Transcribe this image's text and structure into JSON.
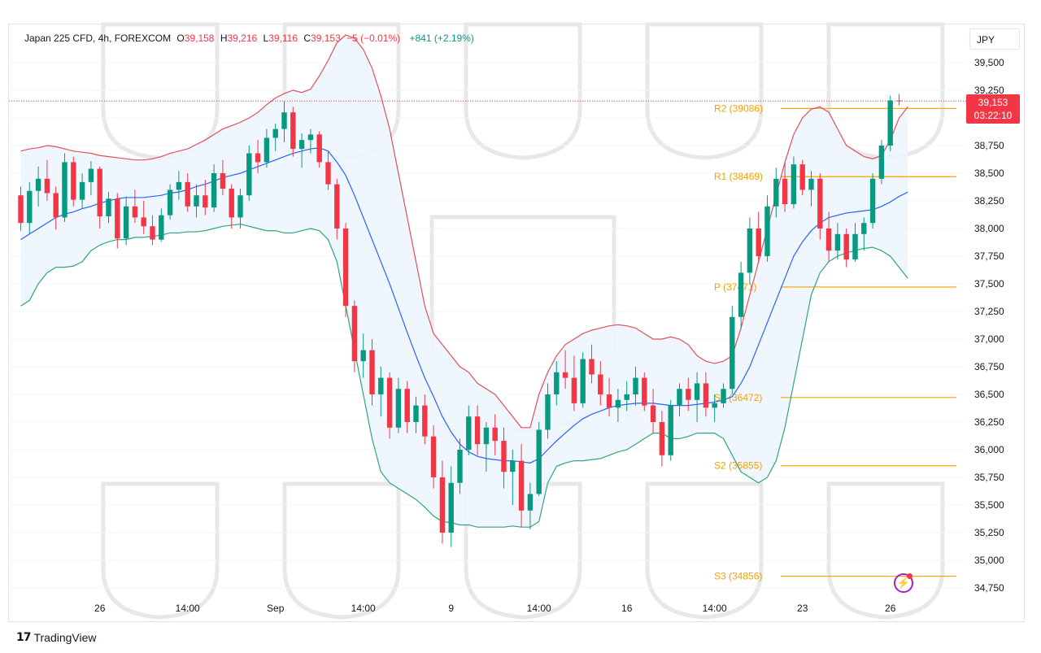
{
  "legend": {
    "symbol": "Japan 225 CFD, 4h, FOREXCOM",
    "o_label": "O",
    "o_value": "39,158",
    "h_label": "H",
    "h_value": "39,216",
    "l_label": "L",
    "l_value": "39,116",
    "c_label": "C",
    "c_value": "39,153",
    "change": "−5 (−0.01%)",
    "change2": "+841 (+2.19%)"
  },
  "currency_button": "JPY",
  "price_tag": {
    "price": "39,153",
    "countdown": "03:22:10"
  },
  "brand": {
    "logo": "17",
    "name": "TradingView"
  },
  "icons": {
    "alert": "lightning-bolt-icon"
  },
  "colors": {
    "up": "#089981",
    "down": "#f23645",
    "upper_band": "#e0505a",
    "lower_band": "#2fa67a",
    "basis": "#2962ff",
    "band_fill": "#eef5fd",
    "pivot": "#f5a100",
    "last_price": "#f23645"
  },
  "chart_data": {
    "type": "candlestick",
    "title": "Japan 225 CFD, 4h, FOREXCOM",
    "ylim": [
      34650,
      39700
    ],
    "y_ticks": [
      34750,
      35000,
      35250,
      35500,
      35750,
      36000,
      36250,
      36500,
      36750,
      37000,
      37250,
      37500,
      37750,
      38000,
      38250,
      38500,
      38750,
      39000,
      39250,
      39500
    ],
    "y_tick_labels": [
      "34,750",
      "35,000",
      "35,250",
      "35,500",
      "35,750",
      "36,000",
      "36,250",
      "36,500",
      "36,750",
      "37,000",
      "37,250",
      "37,500",
      "37,750",
      "38,000",
      "38,250",
      "38,500",
      "38,750",
      "39,000",
      "39,250",
      "39,500"
    ],
    "x_ticks": [
      {
        "bar": 9,
        "label": "26"
      },
      {
        "bar": 19,
        "label": "14:00"
      },
      {
        "bar": 29,
        "label": "Sep"
      },
      {
        "bar": 39,
        "label": "14:00"
      },
      {
        "bar": 49,
        "label": "9"
      },
      {
        "bar": 59,
        "label": "14:00"
      },
      {
        "bar": 69,
        "label": "16"
      },
      {
        "bar": 79,
        "label": "14:00"
      },
      {
        "bar": 89,
        "label": "23"
      },
      {
        "bar": 99,
        "label": "26"
      }
    ],
    "pivot_levels": [
      {
        "name": "R2",
        "value": 39086,
        "label": "R2 (39086)"
      },
      {
        "name": "R1",
        "value": 38469,
        "label": "R1 (38469)"
      },
      {
        "name": "P",
        "value": 37471,
        "label": "P (37471)"
      },
      {
        "name": "S1",
        "value": 36472,
        "label": "S1 (36472)"
      },
      {
        "name": "S2",
        "value": 35855,
        "label": "S2 (35855)"
      },
      {
        "name": "S3",
        "value": 34856,
        "label": "S3 (34856)"
      }
    ],
    "last_price": 39153,
    "candles": [
      [
        38300,
        38380,
        37980,
        38050
      ],
      [
        38050,
        38420,
        37950,
        38340
      ],
      [
        38340,
        38560,
        38200,
        38450
      ],
      [
        38450,
        38620,
        38250,
        38320
      ],
      [
        38320,
        38380,
        37990,
        38100
      ],
      [
        38100,
        38680,
        38060,
        38600
      ],
      [
        38600,
        38650,
        38200,
        38260
      ],
      [
        38260,
        38500,
        38180,
        38420
      ],
      [
        38420,
        38610,
        38300,
        38540
      ],
      [
        38540,
        38560,
        38000,
        38110
      ],
      [
        38110,
        38330,
        38050,
        38270
      ],
      [
        38270,
        38320,
        37820,
        37910
      ],
      [
        37910,
        38290,
        37850,
        38200
      ],
      [
        38200,
        38350,
        38050,
        38100
      ],
      [
        38100,
        38250,
        37950,
        38020
      ],
      [
        38020,
        38120,
        37850,
        37900
      ],
      [
        37900,
        38180,
        37880,
        38120
      ],
      [
        38120,
        38400,
        38080,
        38350
      ],
      [
        38350,
        38520,
        38260,
        38420
      ],
      [
        38420,
        38500,
        38150,
        38200
      ],
      [
        38200,
        38400,
        38100,
        38300
      ],
      [
        38300,
        38440,
        38120,
        38190
      ],
      [
        38190,
        38580,
        38150,
        38500
      ],
      [
        38500,
        38620,
        38300,
        38360
      ],
      [
        38360,
        38400,
        38000,
        38100
      ],
      [
        38100,
        38360,
        38000,
        38300
      ],
      [
        38300,
        38750,
        38250,
        38680
      ],
      [
        38680,
        38800,
        38500,
        38600
      ],
      [
        38600,
        38900,
        38550,
        38820
      ],
      [
        38820,
        38950,
        38700,
        38900
      ],
      [
        38900,
        39150,
        38780,
        39050
      ],
      [
        39050,
        39100,
        38650,
        38720
      ],
      [
        38720,
        38860,
        38550,
        38800
      ],
      [
        38800,
        38900,
        38680,
        38850
      ],
      [
        38850,
        38880,
        38550,
        38600
      ],
      [
        38600,
        38700,
        38350,
        38400
      ],
      [
        38400,
        38450,
        37900,
        38000
      ],
      [
        38000,
        38050,
        37200,
        37300
      ],
      [
        37300,
        37350,
        36700,
        36800
      ],
      [
        36800,
        37050,
        36650,
        36900
      ],
      [
        36900,
        37000,
        36400,
        36500
      ],
      [
        36500,
        36750,
        36300,
        36650
      ],
      [
        36650,
        36700,
        36100,
        36200
      ],
      [
        36200,
        36650,
        36150,
        36550
      ],
      [
        36550,
        36620,
        36150,
        36250
      ],
      [
        36250,
        36480,
        36150,
        36400
      ],
      [
        36400,
        36500,
        36050,
        36120
      ],
      [
        36120,
        36220,
        35650,
        35750
      ],
      [
        35750,
        35900,
        35150,
        35250
      ],
      [
        35250,
        35850,
        35120,
        35700
      ],
      [
        35700,
        36100,
        35600,
        36000
      ],
      [
        36000,
        36400,
        35950,
        36300
      ],
      [
        36300,
        36400,
        35950,
        36050
      ],
      [
        36050,
        36250,
        35800,
        36200
      ],
      [
        36200,
        36320,
        35950,
        36080
      ],
      [
        36080,
        36200,
        35650,
        35800
      ],
      [
        35800,
        36000,
        35500,
        35900
      ],
      [
        35900,
        36050,
        35300,
        35450
      ],
      [
        35450,
        35700,
        35280,
        35600
      ],
      [
        35600,
        36250,
        35580,
        36180
      ],
      [
        36180,
        36600,
        36100,
        36500
      ],
      [
        36500,
        36800,
        36400,
        36700
      ],
      [
        36700,
        36900,
        36550,
        36650
      ],
      [
        36650,
        36850,
        36350,
        36420
      ],
      [
        36420,
        36880,
        36380,
        36820
      ],
      [
        36820,
        36950,
        36600,
        36680
      ],
      [
        36680,
        36800,
        36400,
        36500
      ],
      [
        36500,
        36650,
        36300,
        36380
      ],
      [
        36380,
        36550,
        36250,
        36450
      ],
      [
        36450,
        36620,
        36350,
        36500
      ],
      [
        36500,
        36750,
        36400,
        36650
      ],
      [
        36650,
        36700,
        36350,
        36400
      ],
      [
        36400,
        36550,
        36150,
        36250
      ],
      [
        36250,
        36350,
        35850,
        35950
      ],
      [
        35950,
        36450,
        35900,
        36400
      ],
      [
        36400,
        36600,
        36300,
        36550
      ],
      [
        36550,
        36650,
        36350,
        36450
      ],
      [
        36450,
        36700,
        36250,
        36600
      ],
      [
        36600,
        36700,
        36300,
        36380
      ],
      [
        36380,
        36500,
        36250,
        36420
      ],
      [
        36420,
        36600,
        36380,
        36550
      ],
      [
        36550,
        37300,
        36500,
        37200
      ],
      [
        37200,
        37700,
        37100,
        37600
      ],
      [
        37600,
        38100,
        37500,
        38000
      ],
      [
        38000,
        38150,
        37700,
        37750
      ],
      [
        37750,
        38300,
        37700,
        38200
      ],
      [
        38200,
        38550,
        38100,
        38450
      ],
      [
        38450,
        38600,
        38150,
        38220
      ],
      [
        38220,
        38650,
        38180,
        38580
      ],
      [
        38580,
        38620,
        38300,
        38350
      ],
      [
        38350,
        38520,
        38200,
        38450
      ],
      [
        38450,
        38500,
        37900,
        38000
      ],
      [
        38000,
        38150,
        37700,
        37800
      ],
      [
        37800,
        38050,
        37720,
        37950
      ],
      [
        37950,
        38000,
        37650,
        37720
      ],
      [
        37720,
        38050,
        37700,
        37950
      ],
      [
        37950,
        38100,
        37800,
        38050
      ],
      [
        38050,
        38500,
        38000,
        38450
      ],
      [
        38450,
        38800,
        38400,
        38750
      ],
      [
        38750,
        39200,
        38700,
        39158
      ],
      [
        39158,
        39216,
        39116,
        39153
      ]
    ],
    "upper_band": [
      38700,
      38720,
      38730,
      38750,
      38740,
      38720,
      38700,
      38690,
      38680,
      38660,
      38650,
      38640,
      38630,
      38620,
      38620,
      38630,
      38650,
      38680,
      38700,
      38720,
      38760,
      38800,
      38850,
      38900,
      38930,
      38960,
      39000,
      39050,
      39120,
      39180,
      39220,
      39250,
      39230,
      39260,
      39380,
      39520,
      39680,
      39750,
      39720,
      39620,
      39450,
      39200,
      38900,
      38500,
      38100,
      37700,
      37300,
      37050,
      36950,
      36850,
      36750,
      36700,
      36600,
      36550,
      36500,
      36400,
      36300,
      36200,
      36200,
      36500,
      36700,
      36850,
      36950,
      37000,
      37050,
      37080,
      37100,
      37120,
      37130,
      37120,
      37100,
      37050,
      37000,
      37000,
      37020,
      37000,
      36950,
      36850,
      36800,
      36780,
      36800,
      36850,
      37100,
      37400,
      37700,
      38000,
      38300,
      38600,
      38850,
      39000,
      39080,
      39100,
      39050,
      38900,
      38750,
      38700,
      38650,
      38630,
      38660,
      38800,
      39000,
      39100
    ],
    "lower_band": [
      37300,
      37350,
      37500,
      37600,
      37650,
      37650,
      37660,
      37700,
      37800,
      37850,
      37880,
      37900,
      37900,
      37920,
      37920,
      37930,
      37940,
      37960,
      37960,
      37970,
      37970,
      37980,
      38000,
      38020,
      38030,
      38040,
      38020,
      38000,
      37980,
      37980,
      37960,
      37960,
      37980,
      38000,
      37980,
      37900,
      37700,
      37300,
      36900,
      36500,
      36100,
      35800,
      35700,
      35650,
      35600,
      35550,
      35480,
      35400,
      35350,
      35340,
      35320,
      35320,
      35300,
      35300,
      35300,
      35300,
      35310,
      35300,
      35300,
      35350,
      35700,
      35850,
      35880,
      35900,
      35900,
      35910,
      35920,
      35950,
      35980,
      36000,
      36050,
      36100,
      36150,
      36150,
      36100,
      36100,
      36120,
      36150,
      36150,
      36150,
      36100,
      35950,
      35800,
      35750,
      35700,
      35750,
      35900,
      36200,
      36600,
      37000,
      37400,
      37600,
      37700,
      37750,
      37780,
      37800,
      37820,
      37830,
      37800,
      37750,
      37650,
      37550
    ],
    "basis_band": [
      37900,
      37950,
      38000,
      38050,
      38100,
      38130,
      38150,
      38180,
      38200,
      38230,
      38250,
      38270,
      38280,
      38280,
      38280,
      38290,
      38300,
      38320,
      38330,
      38350,
      38380,
      38400,
      38430,
      38460,
      38480,
      38500,
      38530,
      38560,
      38590,
      38620,
      38650,
      38680,
      38700,
      38720,
      38730,
      38700,
      38600,
      38480,
      38300,
      38100,
      37900,
      37700,
      37500,
      37280,
      37060,
      36850,
      36650,
      36480,
      36300,
      36160,
      36050,
      35980,
      35940,
      35920,
      35910,
      35900,
      35900,
      35890,
      35880,
      35920,
      36000,
      36080,
      36150,
      36220,
      36280,
      36320,
      36350,
      36380,
      36400,
      36410,
      36420,
      36420,
      36420,
      36410,
      36400,
      36400,
      36400,
      36410,
      36420,
      36430,
      36450,
      36480,
      36600,
      36750,
      36950,
      37150,
      37350,
      37550,
      37750,
      37880,
      37980,
      38050,
      38100,
      38120,
      38140,
      38150,
      38160,
      38170,
      38200,
      38240,
      38290,
      38330
    ]
  }
}
